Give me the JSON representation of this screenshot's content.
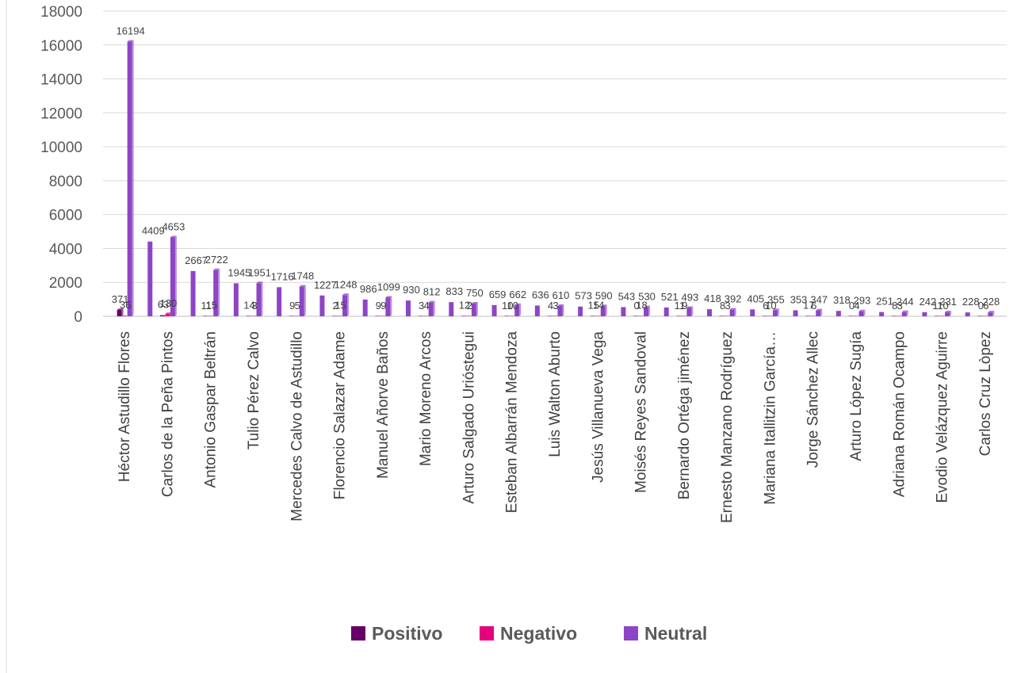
{
  "chart_data": {
    "type": "bar",
    "categories": [
      "Héctor Astudillo Flores",
      "Carlos de la Peña Pintos",
      "Antonio Gaspar Beltrán",
      "Tulio Pérez Calvo",
      "Mercedes Calvo de Astudillo",
      "Florencio Salazar Adame",
      "Manuel Añorve Baños",
      "Mario Moreno Arcos",
      "Arturo Salgado Urióstegui",
      "Esteban Albarrán Mendoza",
      "Luis Walton Aburto",
      "Jesús Villanueva Vega",
      "Moisés Reyes Sandoval",
      "Bernardo Ortéga jiménez",
      "Ernesto Manzano Rodríguez",
      "Mariana Itallitzin García…",
      "Jorge Sánchez Allec",
      "Arturo López Sugía",
      "Adriana Román Ocampo",
      "Evodio Velázquez Aguirre",
      "Carlos Cruz Lòpez"
    ],
    "series": [
      {
        "name": "Positivo",
        "color": "#660066",
        "values": [
          371,
          63,
          11,
          14,
          9,
          2,
          9,
          3,
          12,
          10,
          4,
          15,
          0,
          11,
          8,
          6,
          17,
          0,
          8,
          11,
          0
        ]
      },
      {
        "name": "Negativo",
        "color": "#E6007E",
        "values": [
          36,
          130,
          15,
          3,
          5,
          15,
          9,
          4,
          2,
          10,
          3,
          14,
          18,
          9,
          3,
          10,
          6,
          4,
          3,
          10,
          6
        ]
      },
      {
        "name": "Neutral",
        "color": "#8E44C6",
        "values": [
          16194,
          4653,
          2722,
          1951,
          1748,
          1248,
          1099,
          812,
          750,
          662,
          610,
          590,
          530,
          493,
          392,
          355,
          347,
          293,
          244,
          231,
          228
        ]
      }
    ],
    "extra_labels": [
      "4409",
      "2667",
      "1945",
      "1716",
      "1227",
      "986",
      "930",
      "833",
      "659",
      "636",
      "573",
      "543",
      "521",
      "418",
      "405",
      "353",
      "318",
      "251",
      "242",
      "228"
    ],
    "ylim": [
      0,
      18000
    ],
    "yticks": [
      0,
      2000,
      4000,
      6000,
      8000,
      10000,
      12000,
      14000,
      16000,
      18000
    ],
    "grid": true,
    "legend_position": "bottom",
    "title": "",
    "xlabel": "",
    "ylabel": ""
  }
}
